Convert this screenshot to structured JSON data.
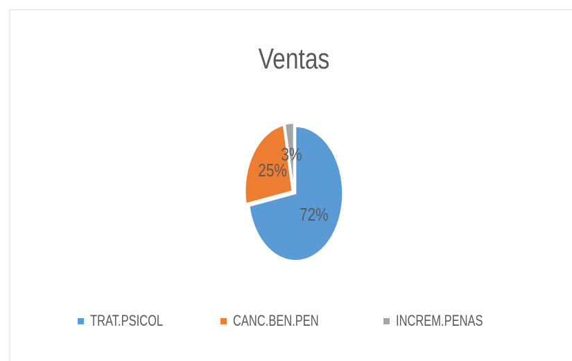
{
  "chart_data": {
    "type": "pie",
    "title": "Ventas",
    "categories": [
      "TRAT.PSICOL",
      "CANC.BEN.PEN",
      "INCREM.PENAS"
    ],
    "values": [
      72,
      25,
      3
    ],
    "value_labels": [
      "72%",
      "25%",
      "3%"
    ],
    "colors": [
      "#5b9bd5",
      "#ed7d31",
      "#a5a5a5"
    ],
    "legend": "bottom"
  }
}
